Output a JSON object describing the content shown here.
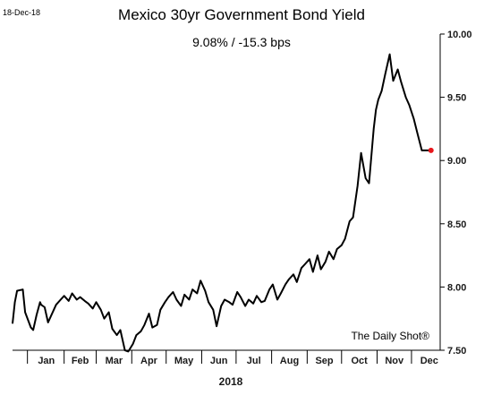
{
  "header": {
    "date": "18-Dec-18",
    "title": "Mexico 30yr Government Bond Yield",
    "subtitle": "9.08%  /  -15.3 bps"
  },
  "credit": "The Daily Shot®",
  "colors": {
    "line": "#000000",
    "marker": "#e8161b"
  },
  "chart_data": {
    "type": "line",
    "title": "Mexico 30yr Government Bond Yield",
    "subtitle": "9.08%  /  -15.3 bps",
    "xlabel": "2018",
    "ylabel": "",
    "ylim": [
      7.5,
      10.0
    ],
    "yticks": [
      7.5,
      8.0,
      8.5,
      9.0,
      9.5,
      10.0
    ],
    "ytick_labels": [
      "7.50",
      "8.00",
      "8.50",
      "9.00",
      "9.50",
      "10.00"
    ],
    "month_labels": [
      "Jan",
      "Feb",
      "Mar",
      "Apr",
      "May",
      "Jun",
      "Jul",
      "Aug",
      "Sep",
      "Oct",
      "Nov",
      "Dec"
    ],
    "grid": false,
    "last_value": 9.08,
    "series": [
      {
        "x": [
          "2017-12-18",
          "2017-12-20",
          "2017-12-22",
          "2017-12-27",
          "2017-12-29",
          "2018-01-03",
          "2018-01-05",
          "2018-01-08",
          "2018-01-11",
          "2018-01-12",
          "2018-01-15",
          "2018-01-18",
          "2018-01-22",
          "2018-01-25",
          "2018-01-29",
          "2018-02-01",
          "2018-02-05",
          "2018-02-08",
          "2018-02-12",
          "2018-02-15",
          "2018-02-19",
          "2018-02-22",
          "2018-02-26",
          "2018-03-01",
          "2018-03-05",
          "2018-03-08",
          "2018-03-12",
          "2018-03-15",
          "2018-03-19",
          "2018-03-22",
          "2018-03-26",
          "2018-03-29",
          "2018-04-02",
          "2018-04-05",
          "2018-04-09",
          "2018-04-12",
          "2018-04-16",
          "2018-04-19",
          "2018-04-23",
          "2018-04-26",
          "2018-04-30",
          "2018-05-03",
          "2018-05-07",
          "2018-05-10",
          "2018-05-14",
          "2018-05-17",
          "2018-05-21",
          "2018-05-24",
          "2018-05-28",
          "2018-05-31",
          "2018-06-04",
          "2018-06-07",
          "2018-06-11",
          "2018-06-14",
          "2018-06-18",
          "2018-06-21",
          "2018-06-25",
          "2018-06-28",
          "2018-07-02",
          "2018-07-05",
          "2018-07-09",
          "2018-07-12",
          "2018-07-16",
          "2018-07-19",
          "2018-07-23",
          "2018-07-26",
          "2018-07-30",
          "2018-08-02",
          "2018-08-06",
          "2018-08-09",
          "2018-08-13",
          "2018-08-16",
          "2018-08-20",
          "2018-08-23",
          "2018-08-27",
          "2018-08-30",
          "2018-09-03",
          "2018-09-06",
          "2018-09-10",
          "2018-09-13",
          "2018-09-17",
          "2018-09-20",
          "2018-09-24",
          "2018-09-27",
          "2018-10-01",
          "2018-10-04",
          "2018-10-08",
          "2018-10-11",
          "2018-10-15",
          "2018-10-18",
          "2018-10-22",
          "2018-10-25",
          "2018-10-29",
          "2018-10-31",
          "2018-11-02",
          "2018-11-05",
          "2018-11-08",
          "2018-11-12",
          "2018-11-15",
          "2018-11-19",
          "2018-11-22",
          "2018-11-26",
          "2018-11-29",
          "2018-12-03",
          "2018-12-06",
          "2018-12-10",
          "2018-12-13",
          "2018-12-17",
          "2018-12-18"
        ],
        "values": [
          7.71,
          7.88,
          7.97,
          7.98,
          7.8,
          7.68,
          7.66,
          7.78,
          7.88,
          7.86,
          7.84,
          7.72,
          7.8,
          7.86,
          7.9,
          7.93,
          7.89,
          7.95,
          7.9,
          7.92,
          7.89,
          7.87,
          7.83,
          7.88,
          7.82,
          7.75,
          7.8,
          7.67,
          7.62,
          7.66,
          7.5,
          7.49,
          7.55,
          7.62,
          7.65,
          7.7,
          7.79,
          7.68,
          7.7,
          7.82,
          7.88,
          7.92,
          7.96,
          7.9,
          7.85,
          7.94,
          7.9,
          7.98,
          7.95,
          8.05,
          7.97,
          7.88,
          7.82,
          7.69,
          7.85,
          7.9,
          7.88,
          7.86,
          7.96,
          7.92,
          7.85,
          7.9,
          7.87,
          7.93,
          7.88,
          7.89,
          7.98,
          8.02,
          7.9,
          7.95,
          8.02,
          8.06,
          8.1,
          8.04,
          8.15,
          8.18,
          8.22,
          8.12,
          8.25,
          8.14,
          8.2,
          8.28,
          8.22,
          8.3,
          8.33,
          8.38,
          8.52,
          8.55,
          8.8,
          9.06,
          8.86,
          8.82,
          9.25,
          9.4,
          9.48,
          9.55,
          9.68,
          9.84,
          9.63,
          9.72,
          9.62,
          9.5,
          9.44,
          9.33,
          9.22,
          9.08,
          9.08,
          9.08,
          9.08
        ]
      }
    ]
  }
}
